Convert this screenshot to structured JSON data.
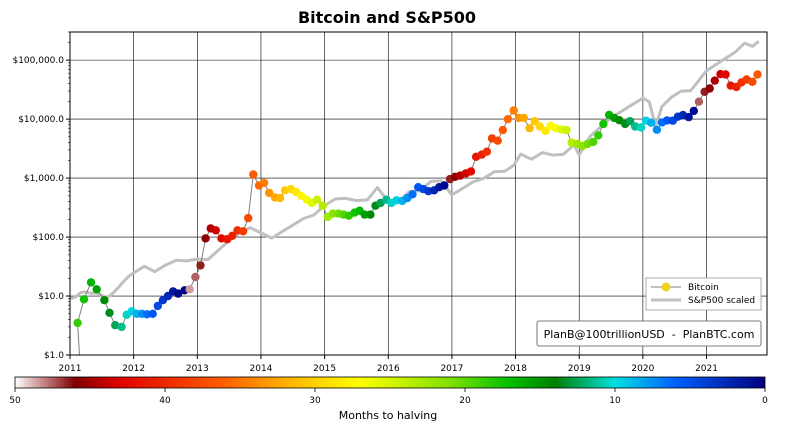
{
  "chart_data": {
    "type": "scatter",
    "title": "Bitcoin and S&P500",
    "xlabel": "",
    "ylabel": "",
    "yscale": "log",
    "xlim": [
      2011.0,
      2021.95
    ],
    "ylim": [
      1,
      300000
    ],
    "x_ticks": [
      2011,
      2012,
      2013,
      2014,
      2015,
      2016,
      2017,
      2018,
      2019,
      2020,
      2021
    ],
    "x_tick_labels": [
      "2011",
      "2012",
      "2013",
      "2014",
      "2015",
      "2016",
      "2017",
      "2018",
      "2019",
      "2020",
      "2021"
    ],
    "y_ticks": [
      1,
      10,
      100,
      1000,
      10000,
      100000
    ],
    "y_tick_labels": [
      "$1.0",
      "$10.0",
      "$100.0",
      "$1,000.0",
      "$10,000.0",
      "$100,000.0"
    ],
    "grid": true,
    "legend": {
      "position": "lower-right",
      "entries": [
        {
          "name": "Bitcoin",
          "line_color": "#808080",
          "marker_color": "#f0d020"
        },
        {
          "name": "S&P500 scaled",
          "line_color": "#c0c0c0"
        }
      ]
    },
    "annotation": "PlanB@100trillionUSD  -  PlanBTC.com",
    "colorbar": {
      "label": "Months to halving",
      "min": 0,
      "max": 50,
      "reversed": true,
      "ticks": [
        50,
        40,
        30,
        20,
        10,
        0
      ],
      "tick_labels": [
        "50",
        "40",
        "30",
        "20",
        "10",
        "0"
      ],
      "palette_stops": [
        {
          "value": 50,
          "color": "#ffffff"
        },
        {
          "value": 46,
          "color": "#800000"
        },
        {
          "value": 43,
          "color": "#e00000"
        },
        {
          "value": 36,
          "color": "#ff6000"
        },
        {
          "value": 32,
          "color": "#ffb000"
        },
        {
          "value": 27,
          "color": "#ffff00"
        },
        {
          "value": 21,
          "color": "#80e000"
        },
        {
          "value": 17,
          "color": "#00c000"
        },
        {
          "value": 14,
          "color": "#008000"
        },
        {
          "value": 10,
          "color": "#00e0e0"
        },
        {
          "value": 6,
          "color": "#0060ff"
        },
        {
          "value": 0,
          "color": "#000080"
        }
      ]
    },
    "series": [
      {
        "name": "Bitcoin",
        "x": [
          2011.12,
          2011.22,
          2011.33,
          2011.42,
          2011.54,
          2011.62,
          2011.71,
          2011.81,
          2011.89,
          2011.97,
          2012.05,
          2012.13,
          2012.21,
          2012.3,
          2012.38,
          2012.46,
          2012.54,
          2012.62,
          2012.7,
          2012.8,
          2012.88,
          2012.97,
          2013.05,
          2013.13,
          2013.21,
          2013.29,
          2013.38,
          2013.47,
          2013.55,
          2013.63,
          2013.72,
          2013.8,
          2013.88,
          2013.97,
          2014.05,
          2014.13,
          2014.22,
          2014.3,
          2014.38,
          2014.47,
          2014.55,
          2014.63,
          2014.72,
          2014.8,
          2014.88,
          2014.97,
          2015.05,
          2015.13,
          2015.22,
          2015.3,
          2015.38,
          2015.47,
          2015.55,
          2015.63,
          2015.72,
          2015.8,
          2015.88,
          2015.97,
          2016.05,
          2016.13,
          2016.22,
          2016.3,
          2016.38,
          2016.47,
          2016.55,
          2016.63,
          2016.72,
          2016.8,
          2016.88,
          2016.97,
          2017.05,
          2017.13,
          2017.22,
          2017.3,
          2017.38,
          2017.47,
          2017.55,
          2017.63,
          2017.72,
          2017.8,
          2017.88,
          2017.97,
          2018.05,
          2018.13,
          2018.22,
          2018.3,
          2018.38,
          2018.47,
          2018.55,
          2018.63,
          2018.72,
          2018.8,
          2018.88,
          2018.97,
          2019.05,
          2019.13,
          2019.22,
          2019.3,
          2019.38,
          2019.47,
          2019.55,
          2019.63,
          2019.72,
          2019.8,
          2019.88,
          2019.97,
          2020.05,
          2020.13,
          2020.22,
          2020.3,
          2020.38,
          2020.47,
          2020.55,
          2020.63,
          2020.72,
          2020.8,
          2020.88,
          2020.97,
          2021.05,
          2021.13,
          2021.22,
          2021.3,
          2021.38,
          2021.47,
          2021.55,
          2021.63,
          2021.72,
          2021.8
        ],
        "y": [
          3.5,
          8.8,
          17,
          13,
          8.5,
          5.2,
          3.2,
          3.0,
          4.8,
          5.5,
          5.0,
          5.0,
          4.9,
          5.0,
          6.8,
          8.5,
          10,
          12,
          11,
          12.5,
          13,
          21,
          33,
          95,
          140,
          130,
          95,
          92,
          105,
          130,
          125,
          210,
          1150,
          750,
          830,
          560,
          470,
          460,
          620,
          650,
          580,
          500,
          430,
          380,
          430,
          340,
          220,
          250,
          250,
          240,
          230,
          260,
          280,
          240,
          240,
          340,
          380,
          430,
          380,
          420,
          410,
          460,
          530,
          700,
          650,
          600,
          620,
          700,
          750,
          960,
          1050,
          1100,
          1200,
          1300,
          2300,
          2500,
          2800,
          4700,
          4300,
          6500,
          10000,
          14000,
          10500,
          10500,
          7000,
          9200,
          7500,
          6300,
          7700,
          7000,
          6700,
          6500,
          4000,
          3800,
          3500,
          3800,
          4100,
          5300,
          8300,
          11800,
          10500,
          9600,
          8300,
          9200,
          7500,
          7200,
          9400,
          8700,
          6600,
          8800,
          9500,
          9400,
          11000,
          11700,
          10800,
          13800,
          19700,
          29000,
          33000,
          45000,
          58000,
          57000,
          37000,
          35000,
          42000,
          47000,
          43000,
          57000
        ],
        "months_to_halving": [
          18.5,
          17.5,
          16.5,
          15.5,
          14.5,
          13.5,
          12.5,
          11.5,
          10.5,
          9.5,
          8.5,
          7.5,
          6.5,
          5.5,
          4.5,
          3.5,
          2.5,
          1.5,
          0.5,
          0.2,
          48.5,
          47.5,
          46.5,
          45.5,
          44.5,
          43.5,
          42.5,
          41.5,
          40.5,
          39.5,
          38.5,
          37.5,
          36.5,
          35.5,
          34.5,
          33.5,
          32.5,
          31.5,
          30.5,
          29.5,
          28.5,
          27.5,
          26.5,
          25.5,
          24.5,
          23.5,
          22.5,
          21.5,
          20.5,
          19.5,
          18.5,
          17.5,
          16.5,
          15.5,
          14.5,
          13.5,
          12.5,
          11.5,
          10.5,
          9.5,
          8.5,
          7.5,
          6.5,
          5.5,
          4.5,
          3.5,
          2.5,
          1.5,
          0.5,
          46.5,
          45.5,
          44.5,
          43.5,
          42.5,
          41.5,
          40.5,
          39.5,
          38.5,
          37.5,
          36.5,
          35.5,
          34.5,
          33.5,
          32.5,
          31.5,
          30.5,
          29.5,
          28.5,
          27.5,
          26.5,
          25.5,
          24.5,
          23.5,
          22.5,
          21.5,
          20.5,
          19.5,
          18.5,
          17.5,
          16.5,
          15.5,
          14.5,
          13.5,
          12.5,
          11.5,
          10.5,
          9.5,
          8.5,
          7.5,
          6.5,
          5.5,
          4.5,
          3.5,
          2.5,
          1.5,
          0.5,
          47.5,
          46.5,
          45.5,
          44.5,
          43.5,
          42.5,
          41.5,
          40.5,
          39.5,
          38.5,
          37.5,
          36.5
        ]
      },
      {
        "name": "S&P500 scaled",
        "x": [
          2011.0,
          2011.08,
          2011.17,
          2011.25,
          2011.33,
          2011.42,
          2011.5,
          2011.58,
          2011.67,
          2011.75,
          2011.83,
          2011.92,
          2012.0,
          2012.17,
          2012.33,
          2012.5,
          2012.67,
          2012.83,
          2013.0,
          2013.17,
          2013.33,
          2013.5,
          2013.67,
          2013.83,
          2014.0,
          2014.17,
          2014.33,
          2014.5,
          2014.67,
          2014.83,
          2015.0,
          2015.17,
          2015.33,
          2015.5,
          2015.67,
          2015.83,
          2016.0,
          2016.17,
          2016.33,
          2016.5,
          2016.67,
          2016.83,
          2017.0,
          2017.17,
          2017.33,
          2017.5,
          2017.67,
          2017.83,
          2017.97,
          2018.08,
          2018.25,
          2018.42,
          2018.58,
          2018.75,
          2018.92,
          2019.0,
          2019.17,
          2019.33,
          2019.5,
          2019.67,
          2019.83,
          2020.0,
          2020.1,
          2020.2,
          2020.3,
          2020.45,
          2020.6,
          2020.75,
          2020.9,
          2021.0,
          2021.15,
          2021.3,
          2021.45,
          2021.6,
          2021.72,
          2021.82
        ]
      }
    ]
  }
}
